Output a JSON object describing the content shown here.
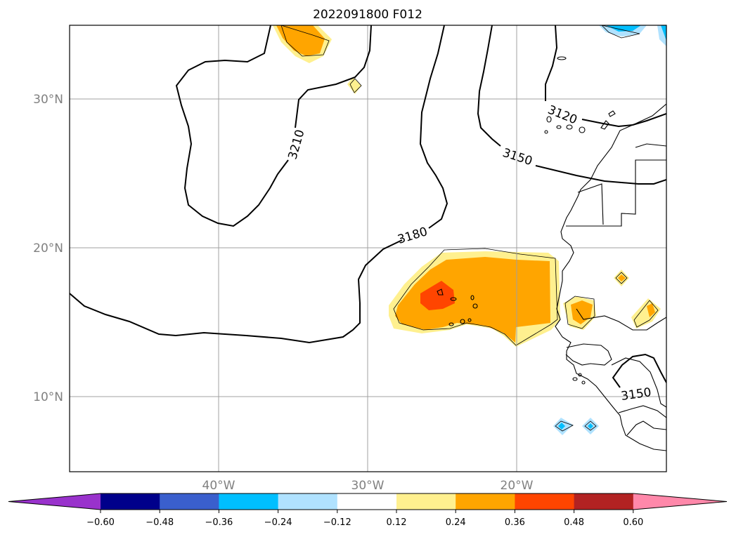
{
  "title": "2022091800 F012",
  "lat_labels": [
    "30°N",
    "20°N",
    "10°N"
  ],
  "lon_labels": [
    "40°W",
    "30°W",
    "20°W"
  ],
  "contour_labels": [
    "3210",
    "3180",
    "3150",
    "3120",
    "3150"
  ],
  "colorbar": {
    "colors": [
      "#9932cc",
      "#00008b",
      "#3a5fcd",
      "#00bfff",
      "#b0e2ff",
      "#ffffff",
      "#fff08f",
      "#ffa500",
      "#ff4500",
      "#b22222",
      "#ff88aa"
    ],
    "tick_labels": [
      "−0.60",
      "−0.48",
      "−0.36",
      "−0.24",
      "−0.12",
      "0.12",
      "0.24",
      "0.36",
      "0.48",
      "0.60"
    ]
  },
  "fill_colors": {
    "light_yellow": "#fff08f",
    "orange": "#ffa500",
    "red_orange": "#ff4500",
    "light_blue": "#b0e2ff",
    "cyan": "#00bfff"
  }
}
